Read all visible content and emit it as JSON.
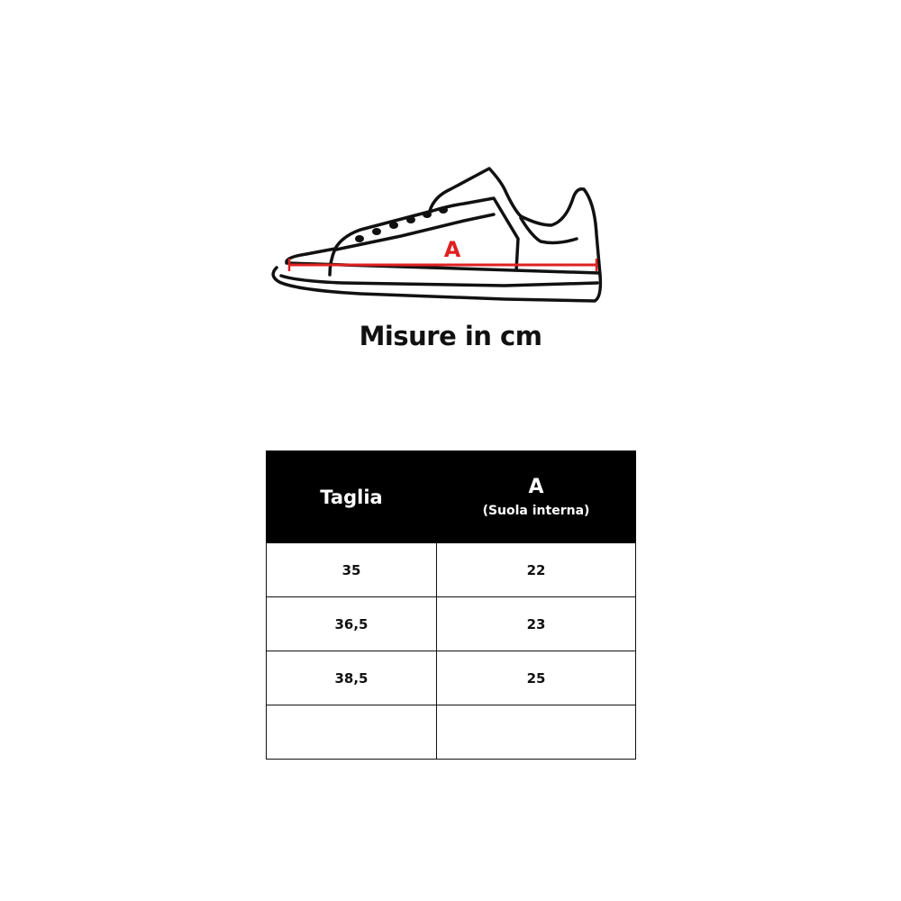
{
  "illustration": {
    "measure_label": "A",
    "measure_color": "#e02020"
  },
  "title": "Misure in cm",
  "table": {
    "headers": [
      {
        "label": "Taglia"
      },
      {
        "label": "A",
        "sublabel": "(Suola interna)"
      }
    ],
    "rows": [
      [
        "35",
        "22"
      ],
      [
        "36,5",
        "23"
      ],
      [
        "38,5",
        "25"
      ],
      [
        "",
        ""
      ]
    ]
  }
}
